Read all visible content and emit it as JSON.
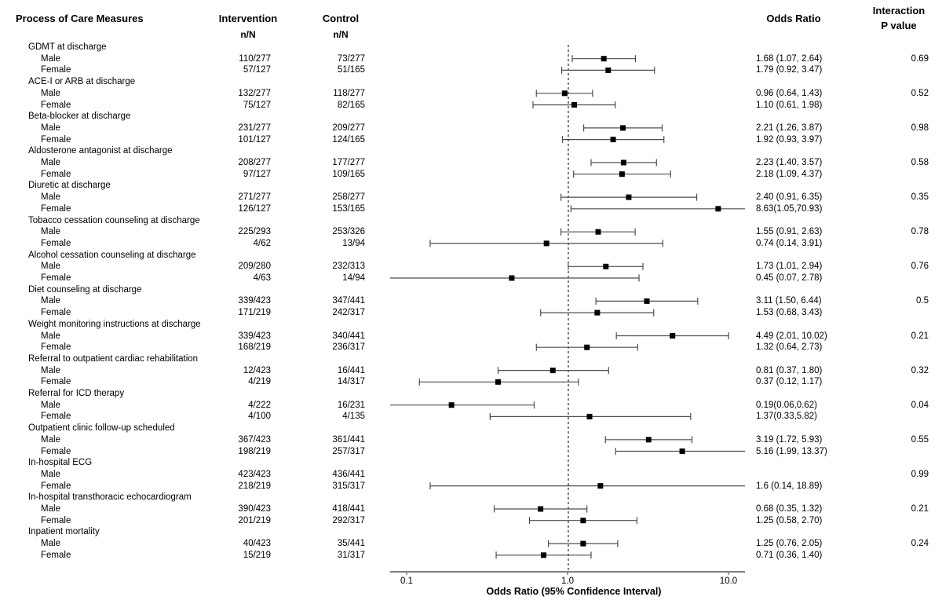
{
  "header": {
    "measures": "Process of Care Measures",
    "intervention": "Intervention",
    "control": "Control",
    "n_over_N": "n/N",
    "odds_ratio": "Odds Ratio",
    "interaction": "Interaction",
    "p_value": "P value"
  },
  "chart_data": {
    "type": "scatter",
    "subtype": "forest-plot",
    "title": "",
    "xlabel": "Odds Ratio (95% Confidence Interval)",
    "x_scale": "log10",
    "x_ticks": [
      0.1,
      1.0,
      10.0
    ],
    "x_tick_labels": [
      "0.1",
      "1.0",
      "10.0"
    ],
    "x_range_approx": [
      0.08,
      12.8
    ],
    "reference_line": 1.0,
    "legend": "none",
    "grid": false,
    "colors": {
      "marker": "#000000",
      "ci_line": "#4d4d4d",
      "axis_line": "#808080",
      "text": "#000000"
    },
    "groups": [
      {
        "measure": "GDMT at discharge",
        "p_value": "0.69",
        "rows": [
          {
            "label": "Male",
            "intervention": "110/277",
            "control": "73/277",
            "or": 1.68,
            "ci_low": 1.07,
            "ci_high": 2.64,
            "or_text": "1.68 (1.07, 2.64)"
          },
          {
            "label": "Female",
            "intervention": "57/127",
            "control": "51/165",
            "or": 1.79,
            "ci_low": 0.92,
            "ci_high": 3.47,
            "or_text": "1.79 (0.92, 3.47)"
          }
        ]
      },
      {
        "measure": "ACE-I or ARB at discharge",
        "p_value": "0.52",
        "rows": [
          {
            "label": "Male",
            "intervention": "132/277",
            "control": "118/277",
            "or": 0.96,
            "ci_low": 0.64,
            "ci_high": 1.43,
            "or_text": "0.96 (0.64, 1.43)"
          },
          {
            "label": "Female",
            "intervention": "75/127",
            "control": "82/165",
            "or": 1.1,
            "ci_low": 0.61,
            "ci_high": 1.98,
            "or_text": "1.10 (0.61, 1.98)"
          }
        ]
      },
      {
        "measure": "Beta-blocker at discharge",
        "p_value": "0.98",
        "rows": [
          {
            "label": "Male",
            "intervention": "231/277",
            "control": "209/277",
            "or": 2.21,
            "ci_low": 1.26,
            "ci_high": 3.87,
            "or_text": "2.21 (1.26, 3.87)"
          },
          {
            "label": "Female",
            "intervention": "101/127",
            "control": "124/165",
            "or": 1.92,
            "ci_low": 0.93,
            "ci_high": 3.97,
            "or_text": "1.92 (0.93, 3.97)"
          }
        ]
      },
      {
        "measure": "Aldosterone antagonist at discharge",
        "p_value": "0.58",
        "rows": [
          {
            "label": "Male",
            "intervention": "208/277",
            "control": "177/277",
            "or": 2.23,
            "ci_low": 1.4,
            "ci_high": 3.57,
            "or_text": "2.23 (1.40, 3.57)"
          },
          {
            "label": "Female",
            "intervention": "97/127",
            "control": "109/165",
            "or": 2.18,
            "ci_low": 1.09,
            "ci_high": 4.37,
            "or_text": "2.18 (1.09, 4.37)"
          }
        ]
      },
      {
        "measure": "Diuretic at discharge",
        "p_value": "0.35",
        "rows": [
          {
            "label": "Male",
            "intervention": "271/277",
            "control": "258/277",
            "or": 2.4,
            "ci_low": 0.91,
            "ci_high": 6.35,
            "or_text": "2.40 (0.91, 6.35)"
          },
          {
            "label": "Female",
            "intervention": "126/127",
            "control": "153/165",
            "or": 8.63,
            "ci_low": 1.05,
            "ci_high": 70.93,
            "or_text": "8.63(1.05,70.93)"
          }
        ]
      },
      {
        "measure": "Tobacco cessation counseling at discharge",
        "p_value": "0.78",
        "rows": [
          {
            "label": "Male",
            "intervention": "225/293",
            "control": "253/326",
            "or": 1.55,
            "ci_low": 0.91,
            "ci_high": 2.63,
            "or_text": "1.55 (0.91, 2.63)"
          },
          {
            "label": "Female",
            "intervention": "4/62",
            "control": "13/94",
            "or": 0.74,
            "ci_low": 0.14,
            "ci_high": 3.91,
            "or_text": "0.74 (0.14, 3.91)"
          }
        ]
      },
      {
        "measure": "Alcohol cessation counseling at discharge",
        "p_value": "0.76",
        "rows": [
          {
            "label": "Male",
            "intervention": "209/280",
            "control": "232/313",
            "or": 1.73,
            "ci_low": 1.01,
            "ci_high": 2.94,
            "or_text": "1.73 (1.01, 2.94)"
          },
          {
            "label": "Female",
            "intervention": "4/63",
            "control": "14/94",
            "or": 0.45,
            "ci_low": 0.07,
            "ci_high": 2.78,
            "or_text": "0.45 (0.07, 2.78)"
          }
        ]
      },
      {
        "measure": "Diet counseling at discharge",
        "p_value": "0.5",
        "rows": [
          {
            "label": "Male",
            "intervention": "339/423",
            "control": "347/441",
            "or": 3.11,
            "ci_low": 1.5,
            "ci_high": 6.44,
            "or_text": "3.11 (1.50, 6.44)"
          },
          {
            "label": "Female",
            "intervention": "171/219",
            "control": "242/317",
            "or": 1.53,
            "ci_low": 0.68,
            "ci_high": 3.43,
            "or_text": "1.53 (0.68, 3.43)"
          }
        ]
      },
      {
        "measure": "Weight monitoring instructions at discharge",
        "p_value": "0.21",
        "rows": [
          {
            "label": "Male",
            "intervention": "339/423",
            "control": "340/441",
            "or": 4.49,
            "ci_low": 2.01,
            "ci_high": 10.02,
            "or_text": "4.49 (2.01, 10.02)"
          },
          {
            "label": "Female",
            "intervention": "168/219",
            "control": "236/317",
            "or": 1.32,
            "ci_low": 0.64,
            "ci_high": 2.73,
            "or_text": "1.32 (0.64, 2.73)"
          }
        ]
      },
      {
        "measure": "Referral to outpatient cardiac rehabilitation",
        "p_value": "0.32",
        "rows": [
          {
            "label": "Male",
            "intervention": "12/423",
            "control": "16/441",
            "or": 0.81,
            "ci_low": 0.37,
            "ci_high": 1.8,
            "or_text": "0.81 (0.37, 1.80)"
          },
          {
            "label": "Female",
            "intervention": "4/219",
            "control": "14/317",
            "or": 0.37,
            "ci_low": 0.12,
            "ci_high": 1.17,
            "or_text": "0.37 (0.12, 1.17)"
          }
        ]
      },
      {
        "measure": "Referral for ICD therapy",
        "p_value": "0.04",
        "rows": [
          {
            "label": "Male",
            "intervention": "4/222",
            "control": "16/231",
            "or": 0.19,
            "ci_low": 0.06,
            "ci_high": 0.62,
            "or_text": "0.19(0.06,0.62)"
          },
          {
            "label": "Female",
            "intervention": "4/100",
            "control": "4/135",
            "or": 1.37,
            "ci_low": 0.33,
            "ci_high": 5.82,
            "or_text": "1.37(0.33,5.82)"
          }
        ]
      },
      {
        "measure": "Outpatient clinic follow-up scheduled",
        "p_value": "0.55",
        "rows": [
          {
            "label": "Male",
            "intervention": "367/423",
            "control": "361/441",
            "or": 3.19,
            "ci_low": 1.72,
            "ci_high": 5.93,
            "or_text": "3.19 (1.72, 5.93)"
          },
          {
            "label": "Female",
            "intervention": "198/219",
            "control": "257/317",
            "or": 5.16,
            "ci_low": 1.99,
            "ci_high": 13.37,
            "or_text": "5.16 (1.99, 13.37)"
          }
        ]
      },
      {
        "measure": "In-hospital ECG",
        "p_value": "0.99",
        "rows": [
          {
            "label": "Male",
            "intervention": "423/423",
            "control": "436/441",
            "or": null,
            "ci_low": null,
            "ci_high": null,
            "or_text": ""
          },
          {
            "label": "Female",
            "intervention": "218/219",
            "control": "315/317",
            "or": 1.6,
            "ci_low": 0.14,
            "ci_high": 18.89,
            "or_text": "1.6 (0.14, 18.89)"
          }
        ]
      },
      {
        "measure": "In-hospital transthoracic echocardiogram",
        "p_value": "0.21",
        "rows": [
          {
            "label": "Male",
            "intervention": "390/423",
            "control": "418/441",
            "or": 0.68,
            "ci_low": 0.35,
            "ci_high": 1.32,
            "or_text": "0.68 (0.35, 1.32)"
          },
          {
            "label": "Female",
            "intervention": "201/219",
            "control": "292/317",
            "or": 1.25,
            "ci_low": 0.58,
            "ci_high": 2.7,
            "or_text": "1.25 (0.58, 2.70)"
          }
        ]
      },
      {
        "measure": "Inpatient mortality",
        "p_value": "0.24",
        "rows": [
          {
            "label": "Male",
            "intervention": "40/423",
            "control": "35/441",
            "or": 1.25,
            "ci_low": 0.76,
            "ci_high": 2.05,
            "or_text": "1.25 (0.76, 2.05)"
          },
          {
            "label": "Female",
            "intervention": "15/219",
            "control": "31/317",
            "or": 0.71,
            "ci_low": 0.36,
            "ci_high": 1.4,
            "or_text": "0.71 (0.36, 1.40)"
          }
        ]
      }
    ]
  }
}
